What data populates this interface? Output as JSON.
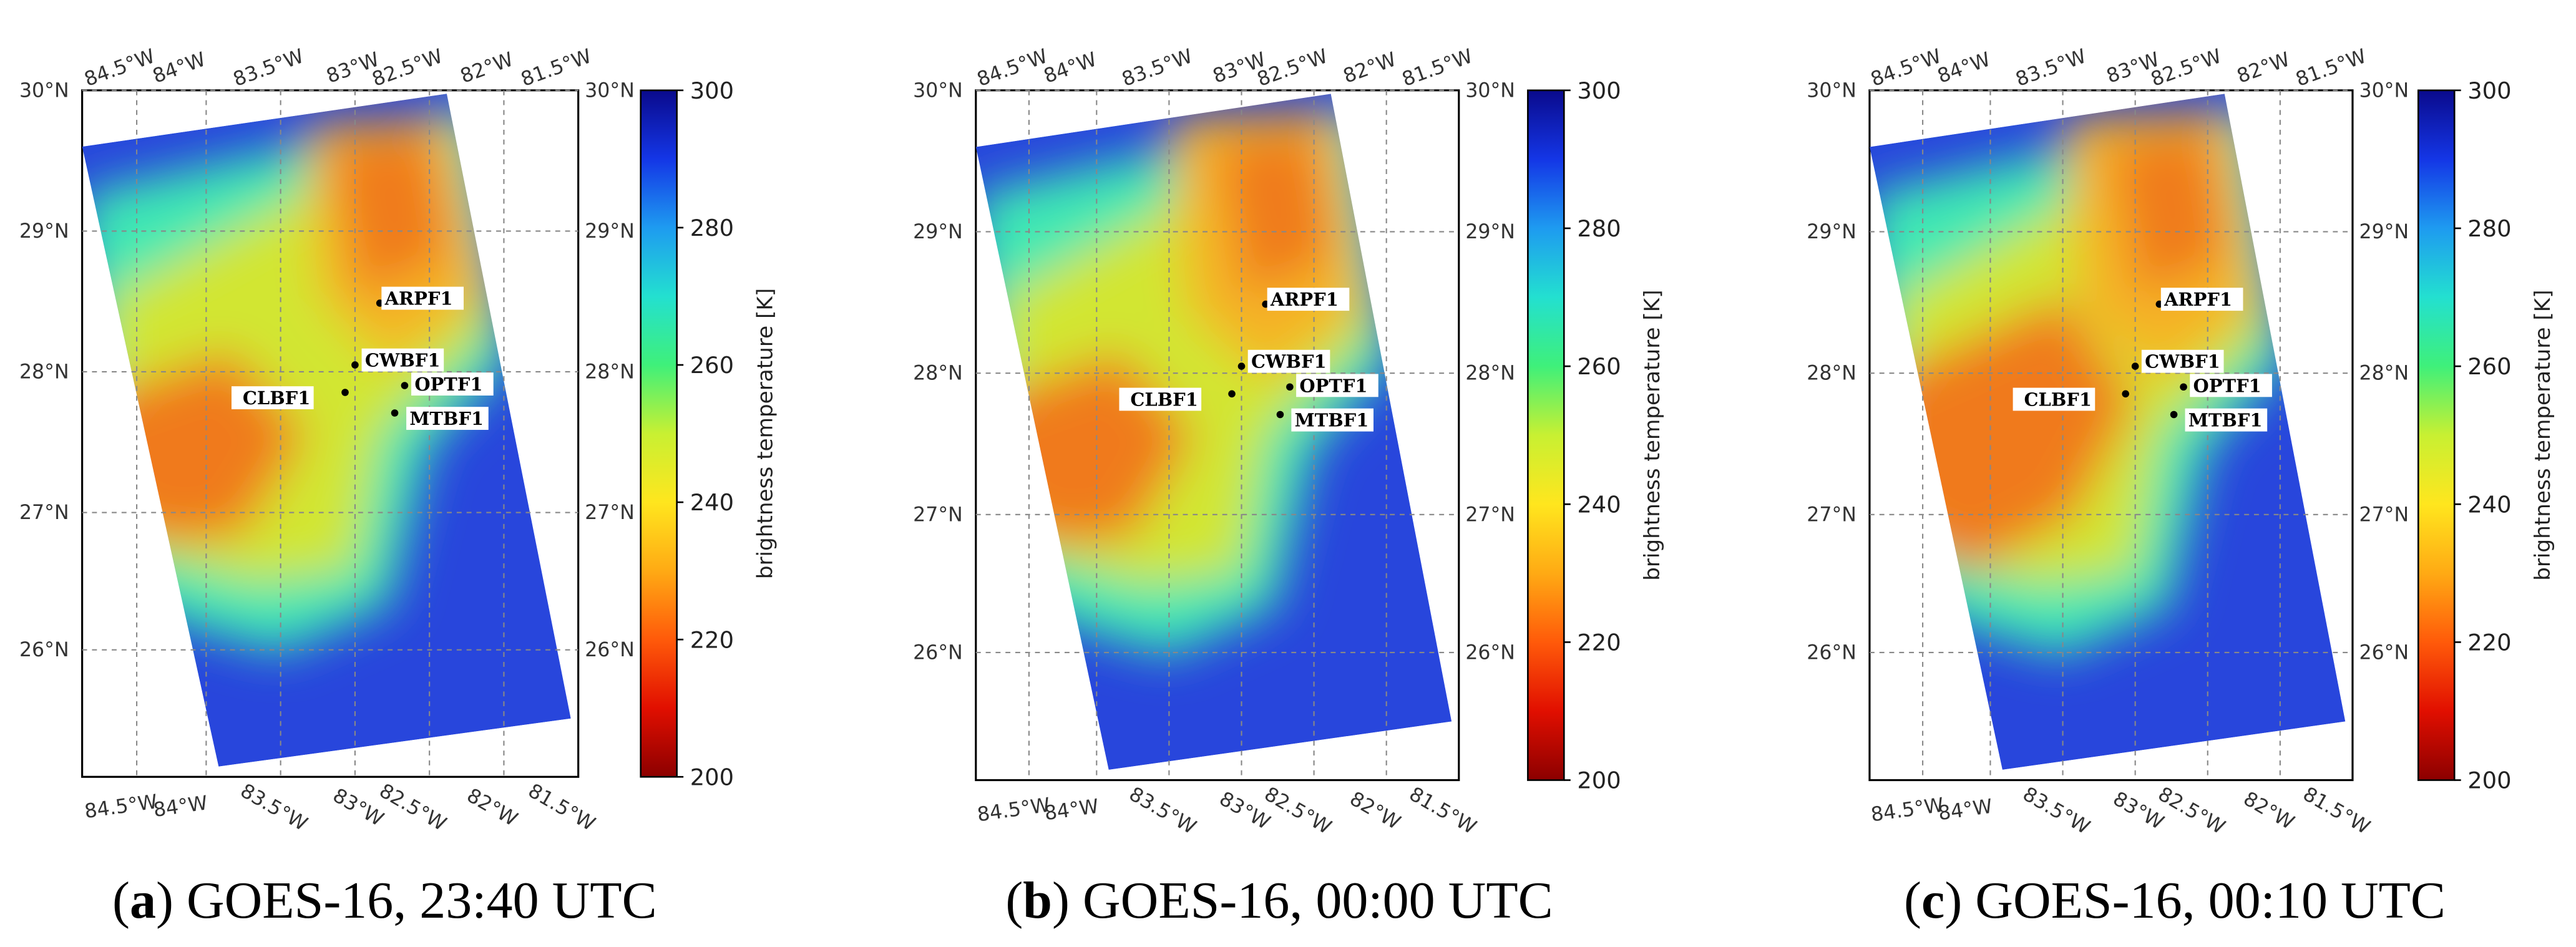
{
  "figure": {
    "colorbar": {
      "label": "brightness temperature [K]",
      "min": 200,
      "max": 300,
      "ticks": [
        "300",
        "280",
        "260",
        "240",
        "220",
        "200"
      ],
      "colors": [
        "#0a0a8c",
        "#1436e6",
        "#1e9bf0",
        "#23e0d0",
        "#3ff07a",
        "#c8f032",
        "#ffe61e",
        "#ffaa14",
        "#ff5a0a",
        "#e10f00",
        "#8c0000"
      ]
    },
    "map_colors": {
      "cold_cloud": "#f07a1e",
      "warm_cloud": "#f5b428",
      "mid_cloud": "#d2e632",
      "low_cloud": "#3ce8b4",
      "clear_sky": "#2846dc"
    },
    "axes": {
      "lat_labels": [
        "30°N",
        "29°N",
        "28°N",
        "27°N",
        "26°N"
      ],
      "lon_labels": [
        "84.5°W",
        "84°W",
        "83.5°W",
        "83°W",
        "82.5°W",
        "82°W",
        "81.5°W"
      ]
    },
    "stations": [
      "ARPF1",
      "CWBF1",
      "CLBF1",
      "OPTF1",
      "MTBF1"
    ],
    "panels": [
      {
        "letter": "a",
        "caption": "GOES-16, 23:40 UTC"
      },
      {
        "letter": "b",
        "caption": "GOES-16, 00:00 UTC"
      },
      {
        "letter": "c",
        "caption": "GOES-16, 00:10 UTC"
      }
    ]
  }
}
